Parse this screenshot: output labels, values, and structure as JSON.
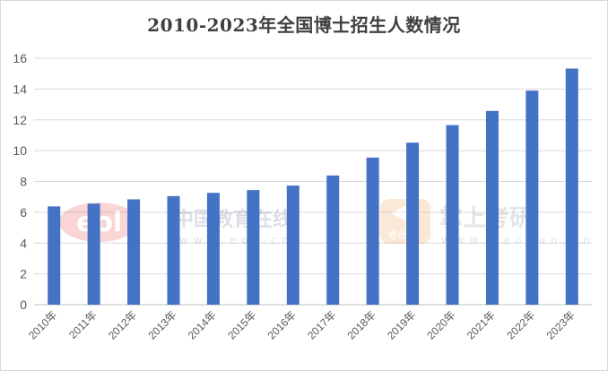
{
  "chart_data": {
    "type": "bar",
    "title": "2010-2023年全国博士招生人数情况",
    "categories": [
      "2010年",
      "2011年",
      "2012年",
      "2013年",
      "2014年",
      "2015年",
      "2016年",
      "2017年",
      "2018年",
      "2019年",
      "2020年",
      "2021年",
      "2022年",
      "2023年"
    ],
    "series": [
      {
        "values": [
          6.38,
          6.56,
          6.84,
          7.05,
          7.26,
          7.44,
          7.73,
          8.39,
          9.55,
          10.52,
          11.66,
          12.58,
          13.9,
          15.33
        ]
      }
    ],
    "ylim": [
      0,
      16
    ],
    "yticks": [
      0,
      2,
      4,
      6,
      8,
      10,
      12,
      14,
      16
    ],
    "grid": true,
    "legend": "none",
    "bar_color": "#4472c4"
  },
  "watermarks": {
    "left_brand": "中国教育在线",
    "left_url": "www.eol.cn",
    "left_logo_text": "eol",
    "right_brand": "掌上考研",
    "right_url": "www.kaoyan.cn",
    "right_logo_sub": "考研"
  }
}
